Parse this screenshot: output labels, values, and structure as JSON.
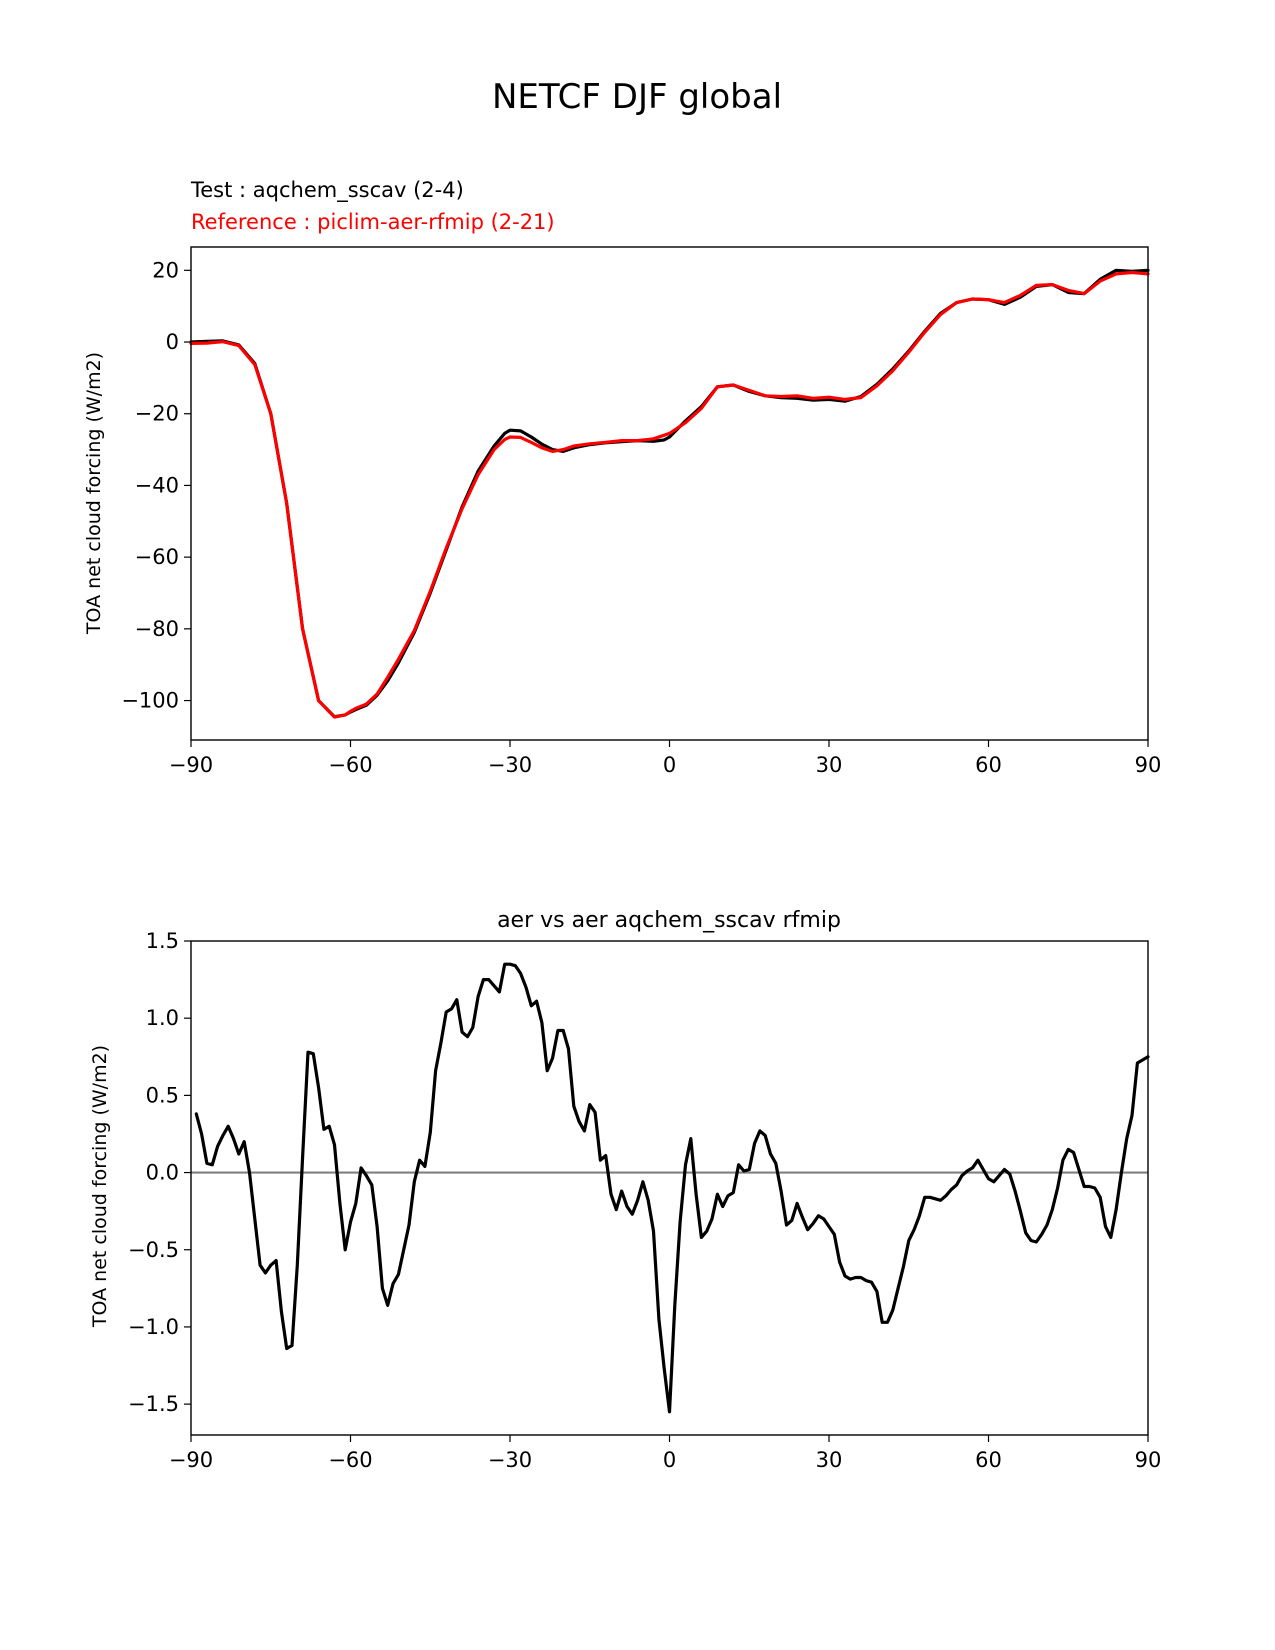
{
  "figure": {
    "suptitle": "NETCF DJF global"
  },
  "chart_data": [
    {
      "type": "line",
      "test_label": "Test : aqchem_sscav (2-4)",
      "reference_label": "Reference : piclim-aer-rfmip (2-21)",
      "xlabel": "",
      "ylabel": "TOA net cloud forcing (W/m2)",
      "xlim": [
        -90,
        90
      ],
      "ylim": [
        -111,
        26.5
      ],
      "xticks": [
        -90,
        -60,
        -30,
        0,
        30,
        60,
        90
      ],
      "xtick_labels": [
        "−90",
        "−60",
        "−30",
        "0",
        "30",
        "60",
        "90"
      ],
      "yticks": [
        20,
        0,
        -20,
        -40,
        -60,
        -80,
        -100
      ],
      "ytick_labels": [
        "20",
        "0",
        "−20",
        "−40",
        "−60",
        "−80",
        "−100"
      ],
      "colors": {
        "test": "#000000",
        "reference": "#ff0000"
      },
      "series": [
        {
          "name": "test",
          "x": [
            -90,
            -87,
            -84,
            -81,
            -78,
            -75,
            -72,
            -69,
            -66,
            -63,
            -61,
            -60,
            -59,
            -57,
            -55,
            -53,
            -51,
            -48,
            -45,
            -42,
            -39,
            -36,
            -33,
            -31,
            -30,
            -28,
            -26,
            -24,
            -22,
            -20,
            -18,
            -15,
            -12,
            -9,
            -6,
            -3,
            -1,
            0,
            3,
            6,
            9,
            12,
            15,
            18,
            21,
            24,
            27,
            30,
            33,
            36,
            39,
            42,
            45,
            48,
            51,
            54,
            57,
            60,
            63,
            66,
            69,
            72,
            75,
            78,
            81,
            84,
            87,
            90
          ],
          "y": [
            0,
            0.2,
            0.3,
            -0.8,
            -6,
            -20,
            -45,
            -80,
            -100,
            -104.5,
            -104,
            -103.2,
            -102.5,
            -101.3,
            -98.5,
            -94.5,
            -89.5,
            -81,
            -70,
            -58,
            -46,
            -36,
            -29,
            -25.5,
            -24.6,
            -24.8,
            -26.5,
            -28.5,
            -30,
            -30.5,
            -29.5,
            -28.6,
            -28.1,
            -27.8,
            -27.5,
            -27.7,
            -27.3,
            -26.5,
            -22,
            -18,
            -12.5,
            -12,
            -13.8,
            -15,
            -15.5,
            -15.7,
            -16.2,
            -16,
            -16.5,
            -15.2,
            -11.8,
            -7.5,
            -2.5,
            3,
            8,
            11,
            12,
            11.8,
            10.5,
            12.5,
            15.5,
            16,
            13.8,
            13.5,
            17.5,
            20,
            19.7,
            20
          ]
        },
        {
          "name": "reference",
          "x": [
            -90,
            -87,
            -84,
            -81,
            -78,
            -75,
            -72,
            -69,
            -66,
            -63,
            -61,
            -60,
            -59,
            -57,
            -55,
            -53,
            -51,
            -48,
            -45,
            -42,
            -39,
            -36,
            -33,
            -31,
            -30,
            -28,
            -26,
            -24,
            -22,
            -20,
            -18,
            -15,
            -12,
            -9,
            -6,
            -3,
            -1,
            0,
            3,
            6,
            9,
            12,
            15,
            18,
            21,
            24,
            27,
            30,
            33,
            36,
            39,
            42,
            45,
            48,
            51,
            54,
            57,
            60,
            63,
            66,
            69,
            72,
            75,
            78,
            81,
            84,
            87,
            90
          ],
          "y": [
            -0.4,
            -0.3,
            0.1,
            -1,
            -6.3,
            -20,
            -45,
            -80,
            -100,
            -104.6,
            -104,
            -103,
            -102.2,
            -101,
            -98.2,
            -93.5,
            -88.5,
            -80.5,
            -69.5,
            -57.5,
            -46.5,
            -37,
            -30,
            -27.2,
            -26.5,
            -26.6,
            -28,
            -29.5,
            -30.5,
            -30,
            -29,
            -28.4,
            -28,
            -27.5,
            -27.5,
            -27,
            -26,
            -25.5,
            -22.5,
            -18.5,
            -12.5,
            -12,
            -13.5,
            -15,
            -15.2,
            -15,
            -15.7,
            -15.4,
            -16,
            -15.5,
            -12.2,
            -8,
            -2.8,
            2.7,
            7.7,
            11,
            12,
            11.8,
            11,
            13,
            15.8,
            16,
            14.4,
            13.5,
            17,
            19,
            19.4,
            19
          ]
        }
      ]
    },
    {
      "type": "line",
      "title": "aer vs aer aqchem_sscav rfmip",
      "xlabel": "",
      "ylabel": "TOA net cloud forcing (W/m2)",
      "xlim": [
        -90,
        90
      ],
      "ylim": [
        -1.7,
        1.5
      ],
      "xticks": [
        -90,
        -60,
        -30,
        0,
        30,
        60,
        90
      ],
      "xtick_labels": [
        "−90",
        "−60",
        "−30",
        "0",
        "30",
        "60",
        "90"
      ],
      "yticks": [
        1.5,
        1.0,
        0.5,
        0.0,
        -0.5,
        -1.0,
        -1.5
      ],
      "ytick_labels": [
        "1.5",
        "1.0",
        "0.5",
        "0.0",
        "−0.5",
        "−1.0",
        "−1.5"
      ],
      "zero_line": {
        "value": 0,
        "color": "#808080"
      },
      "colors": {
        "difference": "#000000"
      },
      "series": [
        {
          "name": "difference",
          "x": [
            -89,
            -88,
            -87,
            -86,
            -85,
            -84,
            -83,
            -82,
            -81,
            -80,
            -79,
            -78,
            -77,
            -76,
            -75,
            -74,
            -73,
            -72,
            -71,
            -70,
            -69,
            -68,
            -67,
            -66,
            -65,
            -64,
            -63,
            -62,
            -61,
            -60,
            -59,
            -58,
            -57,
            -56,
            -55,
            -54,
            -53,
            -52,
            -51,
            -50,
            -49,
            -48,
            -47,
            -46,
            -45,
            -44,
            -43,
            -42,
            -41,
            -40,
            -39,
            -38,
            -37,
            -36,
            -35,
            -34,
            -33,
            -32,
            -31,
            -30,
            -29,
            -28,
            -27,
            -26,
            -25,
            -24,
            -23,
            -22,
            -21,
            -20,
            -19,
            -18,
            -17,
            -16,
            -15,
            -14,
            -13,
            -12,
            -11,
            -10,
            -9,
            -8,
            -7,
            -6,
            -5,
            -4,
            -3,
            -2,
            -1,
            0,
            1,
            2,
            3,
            4,
            5,
            6,
            7,
            8,
            9,
            10,
            11,
            12,
            13,
            14,
            15,
            16,
            17,
            18,
            19,
            20,
            21,
            22,
            23,
            24,
            25,
            26,
            27,
            28,
            29,
            30,
            31,
            32,
            33,
            34,
            35,
            36,
            37,
            38,
            39,
            40,
            41,
            42,
            43,
            44,
            45,
            46,
            47,
            48,
            49,
            50,
            51,
            52,
            53,
            54,
            55,
            56,
            57,
            58,
            59,
            60,
            61,
            62,
            63,
            64,
            65,
            66,
            67,
            68,
            69,
            70,
            71,
            72,
            73,
            74,
            75,
            76,
            77,
            78,
            79,
            80,
            81,
            82,
            83,
            84,
            85,
            86,
            87,
            88,
            89,
            90
          ],
          "y": [
            0.38,
            0.25,
            0.06,
            0.05,
            0.17,
            0.24,
            0.3,
            0.22,
            0.12,
            0.2,
            0,
            -0.3,
            -0.6,
            -0.65,
            -0.6,
            -0.57,
            -0.9,
            -1.14,
            -1.12,
            -0.6,
            0.1,
            0.78,
            0.77,
            0.55,
            0.28,
            0.3,
            0.18,
            -0.2,
            -0.5,
            -0.32,
            -0.2,
            0.03,
            -0.02,
            -0.08,
            -0.35,
            -0.75,
            -0.86,
            -0.72,
            -0.66,
            -0.5,
            -0.34,
            -0.06,
            0.08,
            0.04,
            0.26,
            0.66,
            0.84,
            1.04,
            1.06,
            1.12,
            0.91,
            0.88,
            0.94,
            1.14,
            1.25,
            1.25,
            1.21,
            1.17,
            1.35,
            1.35,
            1.34,
            1.29,
            1.2,
            1.08,
            1.11,
            0.97,
            0.66,
            0.74,
            0.92,
            0.92,
            0.8,
            0.43,
            0.33,
            0.27,
            0.44,
            0.39,
            0.08,
            0.11,
            -0.14,
            -0.24,
            -0.12,
            -0.22,
            -0.27,
            -0.18,
            -0.06,
            -0.18,
            -0.38,
            -0.95,
            -1.27,
            -1.55,
            -0.86,
            -0.32,
            0.05,
            0.22,
            -0.14,
            -0.42,
            -0.38,
            -0.3,
            -0.14,
            -0.22,
            -0.15,
            -0.13,
            0.05,
            0.01,
            0.02,
            0.19,
            0.27,
            0.24,
            0.12,
            0.06,
            -0.12,
            -0.34,
            -0.31,
            -0.2,
            -0.29,
            -0.37,
            -0.33,
            -0.28,
            -0.3,
            -0.35,
            -0.4,
            -0.58,
            -0.67,
            -0.69,
            -0.68,
            -0.68,
            -0.7,
            -0.71,
            -0.77,
            -0.97,
            -0.97,
            -0.89,
            -0.75,
            -0.61,
            -0.44,
            -0.37,
            -0.28,
            -0.16,
            -0.16,
            -0.17,
            -0.18,
            -0.15,
            -0.11,
            -0.08,
            -0.02,
            0.01,
            0.03,
            0.08,
            0.02,
            -0.04,
            -0.06,
            -0.02,
            0.02,
            -0.01,
            -0.12,
            -0.25,
            -0.39,
            -0.44,
            -0.45,
            -0.4,
            -0.34,
            -0.24,
            -0.1,
            0.08,
            0.15,
            0.13,
            0.02,
            -0.09,
            -0.09,
            -0.1,
            -0.16,
            -0.35,
            -0.42,
            -0.24,
            0,
            0.22,
            0.37,
            0.71,
            0.73,
            0.75
          ]
        }
      ]
    }
  ]
}
